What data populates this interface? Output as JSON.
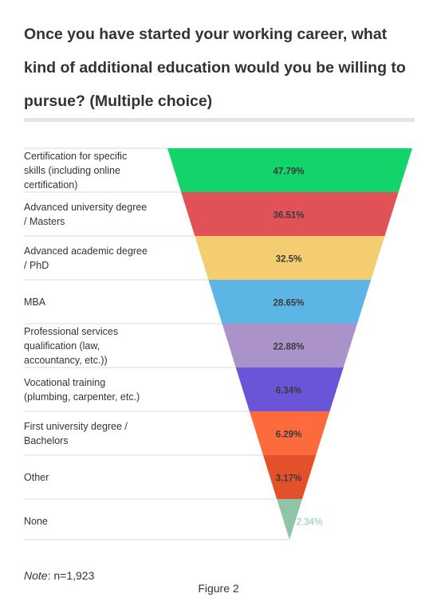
{
  "title": "Once you have started your working career, what kind of additional education would you be willing to pursue? (Multiple choice)",
  "note_label": "Note",
  "note_text": ": n=1,923",
  "caption": "Figure 2",
  "chart_data": {
    "type": "funnel",
    "title": "Once you have started your working career, what kind of additional education would you be willing to pursue? (Multiple choice)",
    "categories": [
      "Certification for specific skills (including online certification)",
      "Advanced university degree / Masters",
      "Advanced academic degree / PhD",
      "MBA",
      "Professional services qualification (law, accountancy, etc.))",
      "Vocational training (plumbing, carpenter, etc.)",
      "First university degree / Bachelors",
      "Other",
      "None"
    ],
    "values": [
      47.79,
      36.51,
      32.5,
      28.65,
      22.88,
      6.34,
      6.29,
      3.17,
      2.34
    ],
    "value_labels": [
      "47.79%",
      "36.51%",
      "32.5%",
      "28.65%",
      "22.88%",
      "6.34%",
      "6.29%",
      "3.17%",
      "2.34%"
    ],
    "colors": [
      "#12d46a",
      "#e05256",
      "#f3cd6f",
      "#5db5e6",
      "#ab92c8",
      "#6a55d9",
      "#fd6a3b",
      "#e4502a",
      "#8fc4a4"
    ],
    "label_lines": [
      [
        "Certification for specific",
        "skills (including online",
        "certification)"
      ],
      [
        "Advanced university degree",
        "/ Masters"
      ],
      [
        "Advanced academic degree",
        "/ PhD"
      ],
      [
        "MBA"
      ],
      [
        "Professional services",
        "qualification (law,",
        "accountancy, etc.))"
      ],
      [
        "Vocational training",
        "(plumbing, carpenter, etc.)"
      ],
      [
        "First university degree /",
        "Bachelors"
      ],
      [
        "Other"
      ],
      [
        "None"
      ]
    ]
  }
}
